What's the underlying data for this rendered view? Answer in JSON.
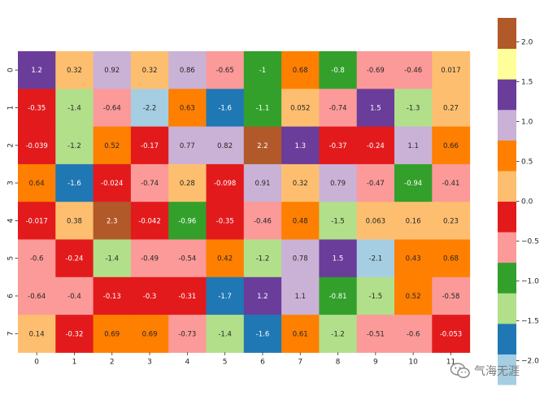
{
  "chart_data": {
    "type": "heatmap",
    "x_labels": [
      "0",
      "1",
      "2",
      "3",
      "4",
      "5",
      "6",
      "7",
      "8",
      "9",
      "10",
      "11"
    ],
    "y_labels": [
      "0",
      "1",
      "2",
      "3",
      "4",
      "5",
      "6",
      "7"
    ],
    "values": [
      [
        1.2,
        0.32,
        0.92,
        0.32,
        0.86,
        -0.65,
        -1,
        0.68,
        -0.8,
        -0.69,
        -0.46,
        0.017
      ],
      [
        -0.35,
        -1.4,
        -0.64,
        -2.2,
        0.63,
        -1.6,
        -1.1,
        0.052,
        -0.74,
        1.5,
        -1.3,
        0.27
      ],
      [
        -0.039,
        -1.2,
        0.52,
        -0.17,
        0.77,
        0.82,
        2.2,
        1.3,
        -0.37,
        -0.24,
        1.1,
        0.66
      ],
      [
        0.64,
        -1.6,
        -0.024,
        -0.74,
        0.28,
        -0.098,
        0.91,
        0.32,
        0.79,
        -0.47,
        -0.94,
        -0.41
      ],
      [
        -0.017,
        0.38,
        2.3,
        -0.042,
        -0.96,
        -0.35,
        -0.46,
        0.48,
        -1.5,
        0.063,
        0.16,
        0.23
      ],
      [
        -0.6,
        -0.24,
        -1.4,
        -0.49,
        -0.54,
        0.42,
        -1.2,
        0.78,
        1.5,
        -2.1,
        0.43,
        0.68
      ],
      [
        -0.64,
        -0.4,
        -0.13,
        -0.3,
        -0.31,
        -1.7,
        1.2,
        1.1,
        -0.81,
        -1.5,
        0.52,
        -0.58
      ],
      [
        0.14,
        -0.32,
        0.69,
        0.69,
        -0.73,
        -1.4,
        -1.6,
        0.61,
        -1.2,
        -0.51,
        -0.6,
        -0.053
      ]
    ],
    "labels": [
      [
        "1.2",
        "0.32",
        "0.92",
        "0.32",
        "0.86",
        "-0.65",
        "-1",
        "0.68",
        "-0.8",
        "-0.69",
        "-0.46",
        "0.017"
      ],
      [
        "-0.35",
        "-1.4",
        "-0.64",
        "-2.2",
        "0.63",
        "-1.6",
        "-1.1",
        "0.052",
        "-0.74",
        "1.5",
        "-1.3",
        "0.27"
      ],
      [
        "-0.039",
        "-1.2",
        "0.52",
        "-0.17",
        "0.77",
        "0.82",
        "2.2",
        "1.3",
        "-0.37",
        "-0.24",
        "1.1",
        "0.66"
      ],
      [
        "0.64",
        "-1.6",
        "-0.024",
        "-0.74",
        "0.28",
        "-0.098",
        "0.91",
        "0.32",
        "0.79",
        "-0.47",
        "-0.94",
        "-0.41"
      ],
      [
        "-0.017",
        "0.38",
        "2.3",
        "-0.042",
        "-0.96",
        "-0.35",
        "-0.46",
        "0.48",
        "-1.5",
        "0.063",
        "0.16",
        "0.23"
      ],
      [
        "-0.6",
        "-0.24",
        "-1.4",
        "-0.49",
        "-0.54",
        "0.42",
        "-1.2",
        "0.78",
        "1.5",
        "-2.1",
        "0.43",
        "0.68"
      ],
      [
        "-0.64",
        "-0.4",
        "-0.13",
        "-0.3",
        "-0.31",
        "-1.7",
        "1.2",
        "1.1",
        "-0.81",
        "-1.5",
        "0.52",
        "-0.58"
      ],
      [
        "0.14",
        "-0.32",
        "0.69",
        "0.69",
        "-0.73",
        "-1.4",
        "-1.6",
        "0.61",
        "-1.2",
        "-0.51",
        "-0.6",
        "-0.053"
      ]
    ],
    "colormap": "Paired",
    "vmin": -2.3,
    "vmax": 2.3,
    "colorbar": {
      "colors": [
        "#a6cee3",
        "#1f78b4",
        "#b2df8a",
        "#33a02c",
        "#fb9a99",
        "#e31a1c",
        "#fdbf6f",
        "#ff7f00",
        "#cab2d6",
        "#6a3d9a",
        "#ffff99",
        "#b15928"
      ],
      "ticks": [
        -2.0,
        -1.5,
        -1.0,
        -0.5,
        0.0,
        0.5,
        1.0,
        1.5,
        2.0
      ],
      "tick_labels": [
        "−2.0",
        "−1.5",
        "−1.0",
        "−0.5",
        "0.0",
        "0.5",
        "1.0",
        "1.5",
        "2.0"
      ]
    },
    "grid": false,
    "title": "",
    "xlabel": "",
    "ylabel": ""
  },
  "watermark": {
    "text": "气海无涯",
    "icon": "wechat-icon"
  }
}
